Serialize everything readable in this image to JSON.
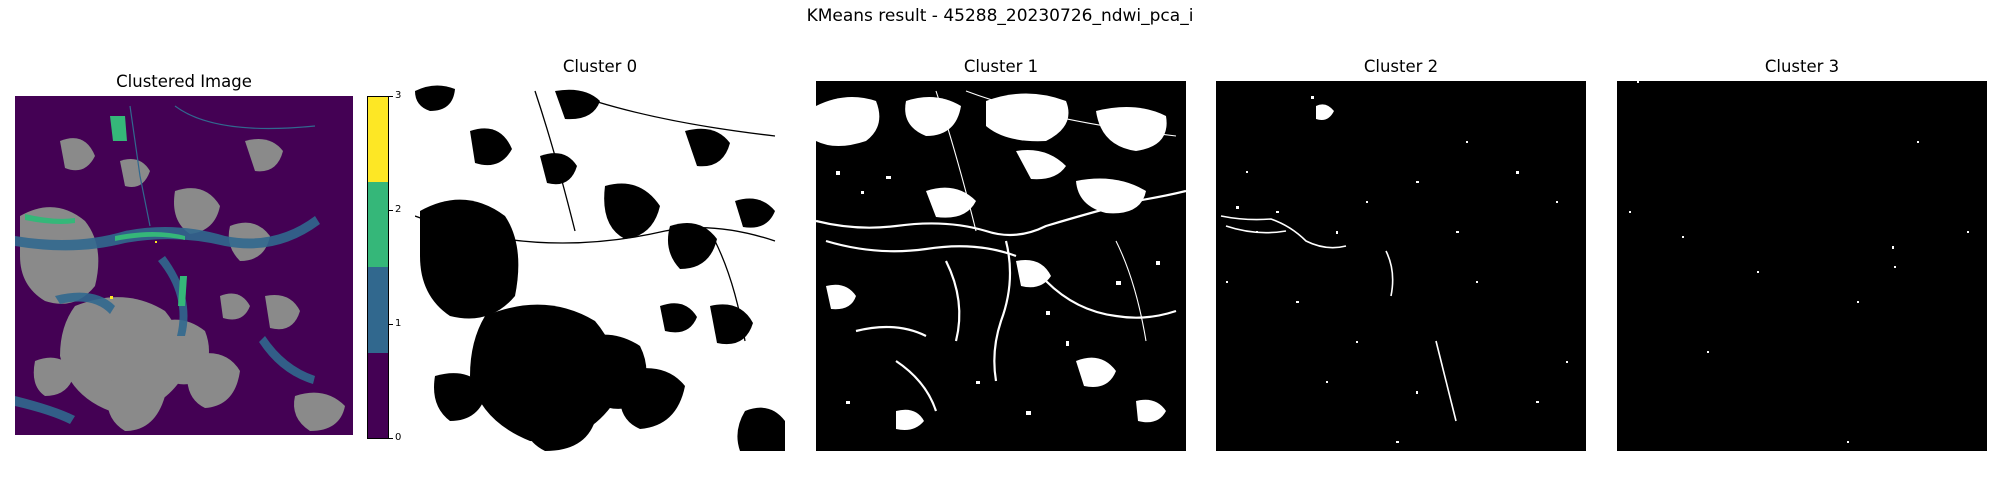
{
  "suptitle": "KMeans result - 45288_20230726_ndwi_pca_i",
  "panels": {
    "clustered": {
      "title": "Clustered Image"
    },
    "cluster0": {
      "title": "Cluster 0"
    },
    "cluster1": {
      "title": "Cluster 1"
    },
    "cluster2": {
      "title": "Cluster 2"
    },
    "cluster3": {
      "title": "Cluster 3"
    }
  },
  "colorbar": {
    "ticks": [
      "0",
      "1",
      "2",
      "3"
    ],
    "colors": [
      "#440154",
      "#31688e",
      "#35b779",
      "#fde725"
    ]
  },
  "colors": {
    "masked_gray": "#8a8a8a",
    "background_cluster": "#440154",
    "mask_on": "#ffffff",
    "mask_off": "#000000"
  }
}
